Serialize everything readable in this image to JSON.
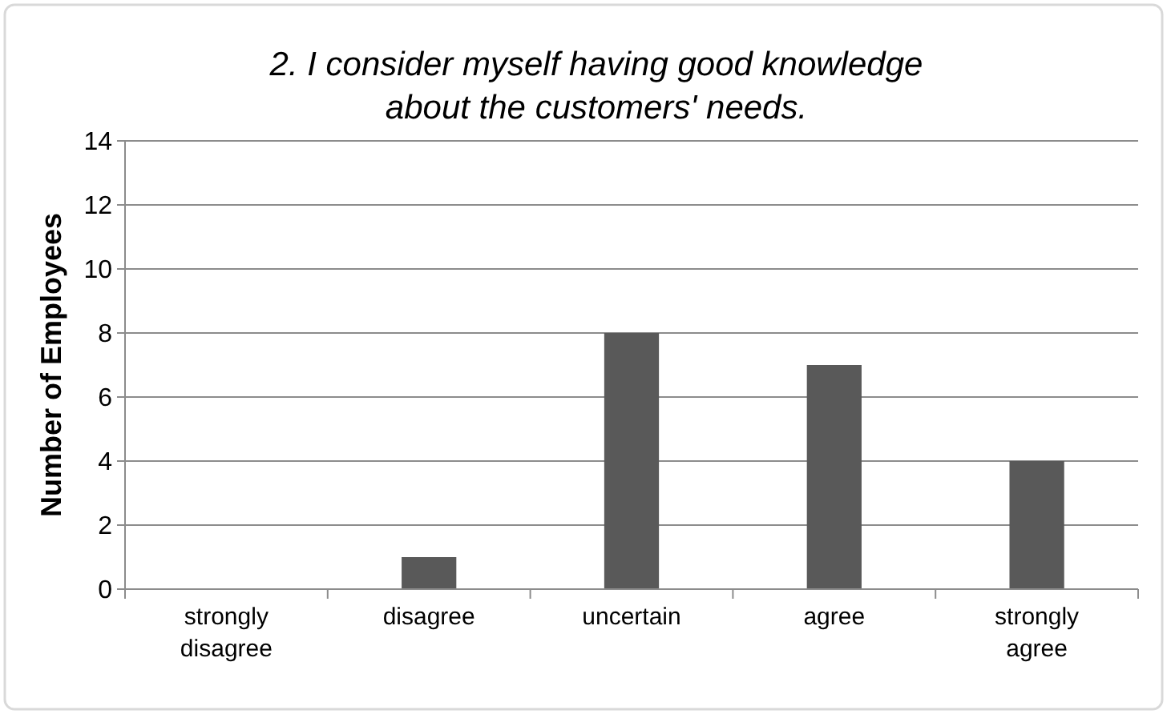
{
  "chart_data": {
    "type": "bar",
    "title": "2. I consider myself having good knowledge about the customers' needs.",
    "ylabel": "Number of Employees",
    "categories": [
      "strongly disagree",
      "disagree",
      "uncertain",
      "agree",
      "strongly agree"
    ],
    "values": [
      0,
      1,
      8,
      7,
      4
    ],
    "color": "#595959",
    "ylim": [
      0,
      14
    ],
    "yticks": [
      0,
      2,
      4,
      6,
      8,
      10,
      12,
      14
    ],
    "grid": "y"
  }
}
